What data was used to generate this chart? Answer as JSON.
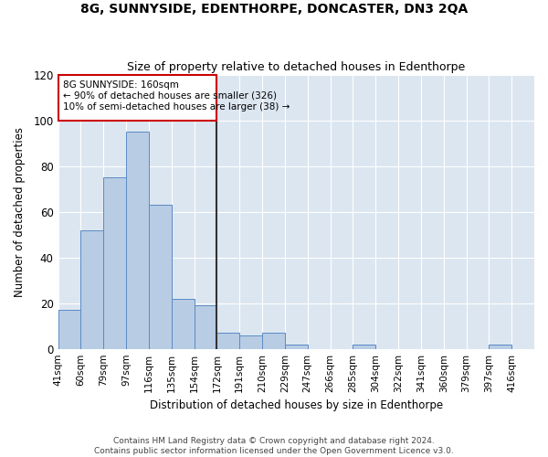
{
  "title": "8G, SUNNYSIDE, EDENTHORPE, DONCASTER, DN3 2QA",
  "subtitle": "Size of property relative to detached houses in Edenthorpe",
  "xlabel": "Distribution of detached houses by size in Edenthorpe",
  "ylabel": "Number of detached properties",
  "categories": [
    "41sqm",
    "60sqm",
    "79sqm",
    "97sqm",
    "116sqm",
    "135sqm",
    "154sqm",
    "172sqm",
    "191sqm",
    "210sqm",
    "229sqm",
    "247sqm",
    "266sqm",
    "285sqm",
    "304sqm",
    "322sqm",
    "341sqm",
    "360sqm",
    "379sqm",
    "397sqm",
    "416sqm"
  ],
  "bin_heights": [
    17,
    52,
    75,
    95,
    63,
    22,
    19,
    7,
    6,
    7,
    2,
    0,
    0,
    2,
    0,
    0,
    0,
    0,
    0,
    2
  ],
  "property_line_label": "8G SUNNYSIDE: 160sqm",
  "annotation_line1": "← 90% of detached houses are smaller (326)",
  "annotation_line2": "10% of semi-detached houses are larger (38) →",
  "bar_color": "#b8cce4",
  "bar_edge_color": "#5b8bc4",
  "line_color": "#333333",
  "annotation_box_color": "#cc0000",
  "background_color": "#dce6f1",
  "ylim": [
    0,
    120
  ],
  "yticks": [
    0,
    20,
    40,
    60,
    80,
    100,
    120
  ],
  "footer1": "Contains HM Land Registry data © Crown copyright and database right 2024.",
  "footer2": "Contains public sector information licensed under the Open Government Licence v3.0."
}
